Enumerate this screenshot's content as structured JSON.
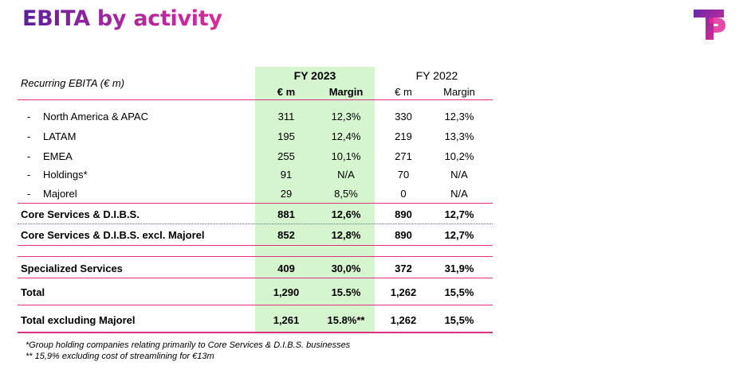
{
  "title": "EBITA by activity",
  "header": {
    "row_label": "Recurring EBITA (€ m)",
    "fy2023": "FY 2023",
    "fy2022": "FY 2022",
    "em": "€ m",
    "margin": "Margin"
  },
  "rows": [
    {
      "dash": "-",
      "label": "North America & APAC",
      "v23": "311",
      "m23": "12,3%",
      "v22": "330",
      "m22": "12,3%"
    },
    {
      "dash": "-",
      "label": "LATAM",
      "v23": "195",
      "m23": "12,4%",
      "v22": "219",
      "m22": "13,3%"
    },
    {
      "dash": "-",
      "label": "EMEA",
      "v23": "255",
      "m23": "10,1%",
      "v22": "271",
      "m22": "10,2%"
    },
    {
      "dash": "-",
      "label": "Holdings*",
      "v23": "91",
      "m23": "N/A",
      "v22": "70",
      "m22": "N/A"
    },
    {
      "dash": "-",
      "label": "Majorel",
      "v23": "29",
      "m23": "8,5%",
      "v22": "0",
      "m22": "N/A"
    },
    {
      "label": "Core Services & D.I.B.S.",
      "v23": "881",
      "m23": "12,6%",
      "v22": "890",
      "m22": "12,7%"
    },
    {
      "label": "Core Services & D.I.B.S. excl. Majorel",
      "v23": "852",
      "m23": "12,8%",
      "v22": "890",
      "m22": "12,7%"
    },
    {
      "label": "Specialized Services",
      "v23": "409",
      "m23": "30,0%",
      "v22": "372",
      "m22": "31,9%"
    },
    {
      "label": "Total",
      "v23": "1,290",
      "m23": "15.5%",
      "v22": "1,262",
      "m22": "15,5%"
    },
    {
      "label": "Total excluding Majorel",
      "v23": "1,261",
      "m23": "15.8%**",
      "v22": "1,262",
      "m22": "15,5%"
    }
  ],
  "footnotes": [
    "*Group holding companies relating primarily to Core Services & D.I.B.S. businesses",
    "** 15,9% excluding cost of streamlining for €13m"
  ],
  "colors": {
    "accent": "#e0317e",
    "title_gradient_start": "#5b1f9c",
    "title_gradient_end": "#d92a9c",
    "highlight": "#d5f5cf"
  }
}
